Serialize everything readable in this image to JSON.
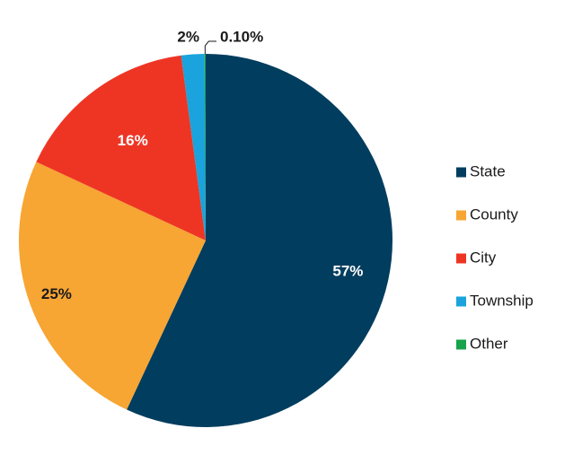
{
  "chart_data": {
    "type": "pie",
    "title": "",
    "slices": [
      {
        "label": "State",
        "value": 57,
        "display": "57%",
        "color": "#013d5e",
        "label_color": "#ffffff"
      },
      {
        "label": "County",
        "value": 25,
        "display": "25%",
        "color": "#f7a533",
        "label_color": "#1a1a1a"
      },
      {
        "label": "City",
        "value": 16,
        "display": "16%",
        "color": "#ee3524",
        "label_color": "#ffffff"
      },
      {
        "label": "Township",
        "value": 2,
        "display": "2%",
        "color": "#1aa3dc",
        "label_color": "#1a1a1a"
      },
      {
        "label": "Other",
        "value": 0.1,
        "display": "0.10%",
        "color": "#16a34a",
        "label_color": "#1a1a1a"
      }
    ],
    "legend_position": "right",
    "direction": "clockwise",
    "start": "top"
  }
}
